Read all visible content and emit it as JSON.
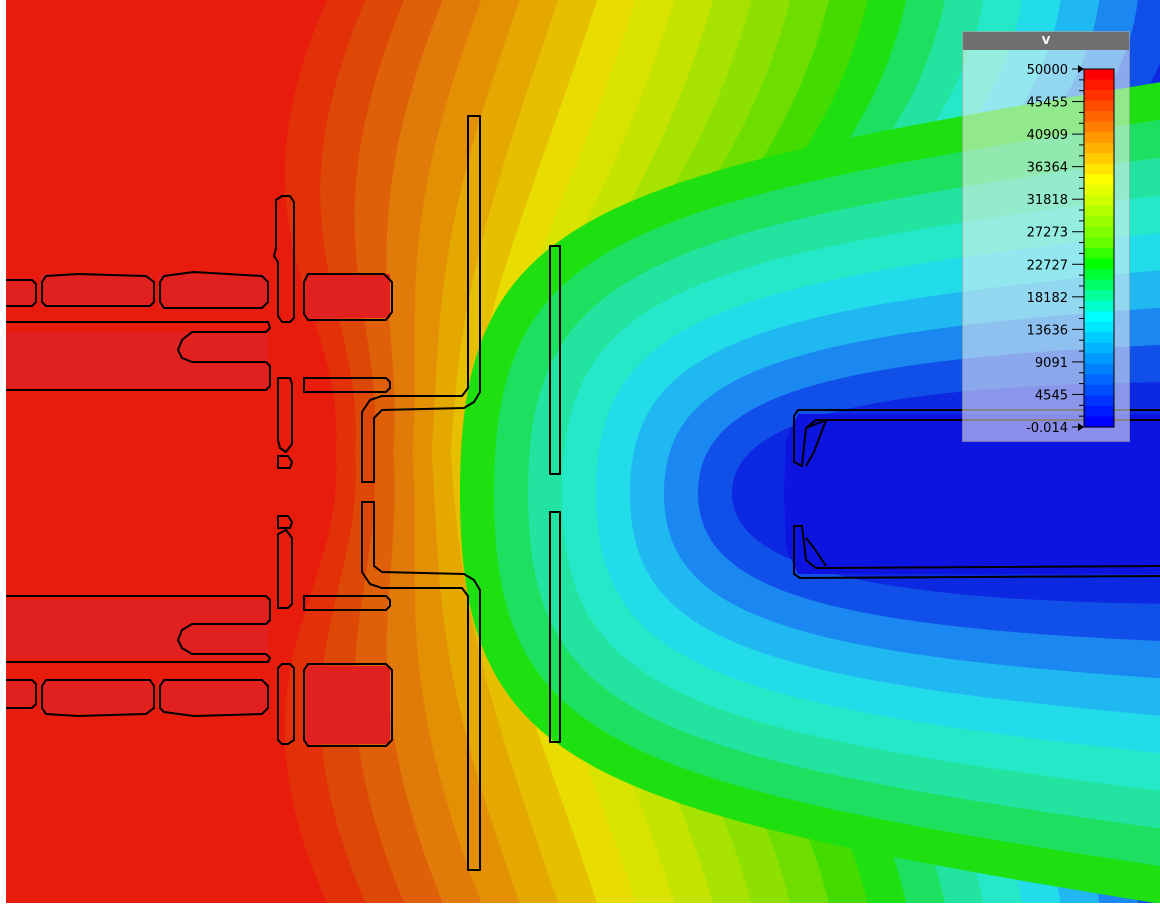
{
  "legend": {
    "title": "V",
    "ticks": [
      "50000",
      "45455",
      "40909",
      "36364",
      "31818",
      "27273",
      "22727",
      "18182",
      "13636",
      "9091",
      "4545",
      "-0.014"
    ],
    "colors": [
      "#ff0000",
      "#ff1a00",
      "#ff3300",
      "#ff4d00",
      "#ff6600",
      "#ff8000",
      "#ff9900",
      "#ffb300",
      "#ffcc00",
      "#ffe600",
      "#ffff00",
      "#e6ff00",
      "#ccff00",
      "#b3ff00",
      "#99ff00",
      "#80ff00",
      "#66ff00",
      "#33ff00",
      "#00ff00",
      "#00ff33",
      "#00ff66",
      "#00ff99",
      "#00ffcc",
      "#00ffff",
      "#00e6ff",
      "#00ccff",
      "#00b3ff",
      "#0099ff",
      "#0080ff",
      "#0066ff",
      "#004dff",
      "#0033ff",
      "#001aff",
      "#0000ff"
    ]
  },
  "field": {
    "contour_colors": [
      "#e81c0c",
      "#e23008",
      "#dd4806",
      "#de6008",
      "#e07a08",
      "#e39004",
      "#e5a800",
      "#e6c000",
      "#e8dc00",
      "#d8e400",
      "#c4e400",
      "#a8e200",
      "#8ee000",
      "#6ede00",
      "#44dc00",
      "#1ee010",
      "#1ee060",
      "#22e4a0",
      "#24e8c8",
      "#22dcea",
      "#20b8f0",
      "#1a88f0",
      "#1050e8",
      "#0c28e0"
    ],
    "electrode_fill": "#e12020",
    "collector_fill": "#0e14e0"
  }
}
